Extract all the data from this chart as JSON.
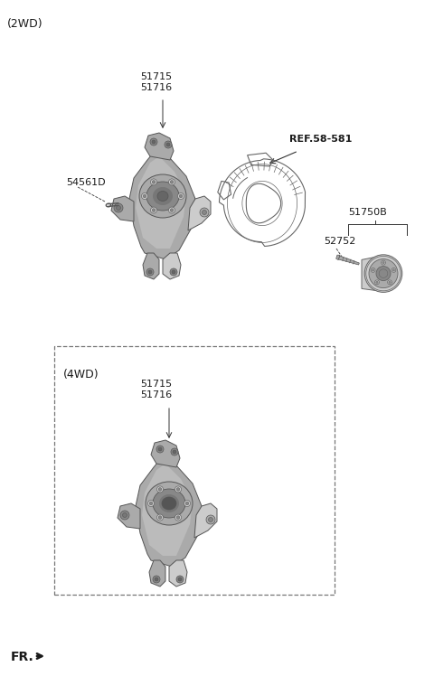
{
  "bg_color": "#ffffff",
  "title_2wd": "(2WD)",
  "title_4wd": "(4WD)",
  "label_54561D": "54561D",
  "label_REF": "REF.58-581",
  "label_51750B": "51750B",
  "label_52752": "52752",
  "label_FR": "FR.",
  "font_size_title": 9,
  "font_size_label": 8,
  "font_color": "#1a1a1a",
  "line_color": "#333333",
  "part_color_dark": "#888888",
  "part_color_mid": "#aaaaaa",
  "part_color_light": "#cccccc",
  "part_color_highlight": "#e0e0e0",
  "part_outline": "#555555",
  "outline_only": "#666666"
}
